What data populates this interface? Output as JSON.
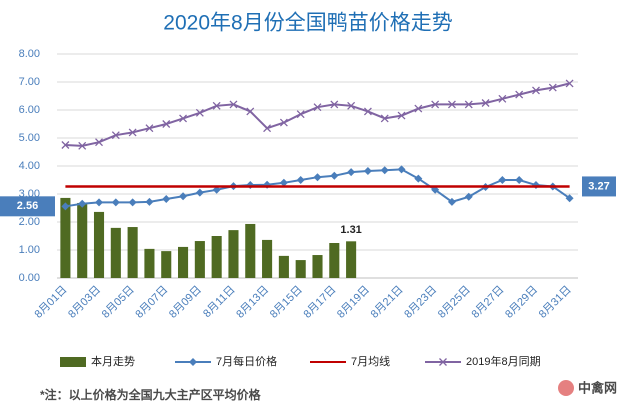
{
  "chart_data": {
    "type": "bar",
    "title": "2020年8月份全国鸭苗价格走势",
    "note": "*注：以上价格为全国九大主产区平均价格",
    "brand": "中禽网",
    "categories": [
      "8月01日",
      null,
      "8月03日",
      null,
      "8月05日",
      null,
      "8月07日",
      null,
      "8月09日",
      null,
      "8月11日",
      null,
      "8月13日",
      null,
      "8月15日",
      null,
      "8月17日",
      null,
      "8月19日",
      null,
      "8月21日",
      null,
      "8月23日",
      null,
      "8月25日",
      null,
      "8月27日",
      null,
      "8月29日",
      null,
      "8月31日"
    ],
    "ylim": [
      0,
      8
    ],
    "yticks": [
      {
        "value": 0,
        "label": "0.00"
      },
      {
        "value": 1,
        "label": "1.00"
      },
      {
        "value": 2,
        "label": "2.00"
      },
      {
        "value": 3,
        "label": "3.00"
      },
      {
        "value": 4,
        "label": "4.00"
      },
      {
        "value": 5,
        "label": "5.00"
      },
      {
        "value": 6,
        "label": "6.00"
      },
      {
        "value": 7,
        "label": "7.00"
      },
      {
        "value": 8,
        "label": "8.00"
      }
    ],
    "grid": true,
    "series": [
      {
        "name": "本月走势",
        "type": "bar",
        "color": "#4f6a22",
        "values": [
          2.86,
          2.68,
          2.36,
          1.79,
          1.82,
          1.04,
          0.96,
          1.11,
          1.32,
          1.5,
          1.71,
          1.93,
          1.36,
          0.79,
          0.64,
          0.82,
          1.25,
          1.31,
          null,
          null,
          null,
          null,
          null,
          null,
          null,
          null,
          null,
          null,
          null,
          null,
          null
        ],
        "value_labels": [
          null,
          null,
          null,
          null,
          null,
          null,
          null,
          null,
          null,
          null,
          null,
          null,
          null,
          null,
          null,
          null,
          null,
          "1.31",
          null,
          null,
          null,
          null,
          null,
          null,
          null,
          null,
          null,
          null,
          null,
          null,
          null
        ]
      },
      {
        "name": "7月每日价格",
        "type": "line",
        "marker": "diamond",
        "color": "#4a7ebb",
        "values": [
          2.56,
          2.65,
          2.7,
          2.7,
          2.7,
          2.72,
          2.82,
          2.92,
          3.05,
          3.15,
          3.28,
          3.32,
          3.33,
          3.4,
          3.5,
          3.6,
          3.65,
          3.78,
          3.82,
          3.85,
          3.88,
          3.55,
          3.15,
          2.72,
          2.9,
          3.25,
          3.5,
          3.5,
          3.32,
          3.27,
          2.85
        ],
        "value_labels": [
          "2.56",
          null,
          null,
          null,
          null,
          null,
          null,
          null,
          null,
          null,
          null,
          null,
          null,
          null,
          null,
          null,
          null,
          null,
          null,
          null,
          null,
          null,
          null,
          null,
          null,
          null,
          null,
          null,
          null,
          null,
          null
        ]
      },
      {
        "name": "7月均线",
        "type": "line",
        "marker": "none",
        "color": "#c00000",
        "values": [
          3.27,
          3.27,
          3.27,
          3.27,
          3.27,
          3.27,
          3.27,
          3.27,
          3.27,
          3.27,
          3.27,
          3.27,
          3.27,
          3.27,
          3.27,
          3.27,
          3.27,
          3.27,
          3.27,
          3.27,
          3.27,
          3.27,
          3.27,
          3.27,
          3.27,
          3.27,
          3.27,
          3.27,
          3.27,
          3.27,
          3.27
        ],
        "value_labels": [
          null,
          null,
          null,
          null,
          null,
          null,
          null,
          null,
          null,
          null,
          null,
          null,
          null,
          null,
          null,
          null,
          null,
          null,
          null,
          null,
          null,
          null,
          null,
          null,
          null,
          null,
          null,
          null,
          null,
          null,
          "3.27"
        ]
      },
      {
        "name": "2019年8月同期",
        "type": "line",
        "marker": "x",
        "color": "#8064a2",
        "values": [
          4.75,
          4.72,
          4.85,
          5.1,
          5.2,
          5.35,
          5.5,
          5.7,
          5.9,
          6.15,
          6.2,
          5.95,
          5.35,
          5.55,
          5.85,
          6.1,
          6.2,
          6.15,
          5.95,
          5.7,
          5.8,
          6.05,
          6.2,
          6.2,
          6.2,
          6.25,
          6.4,
          6.55,
          6.7,
          6.8,
          6.95
        ]
      }
    ]
  }
}
